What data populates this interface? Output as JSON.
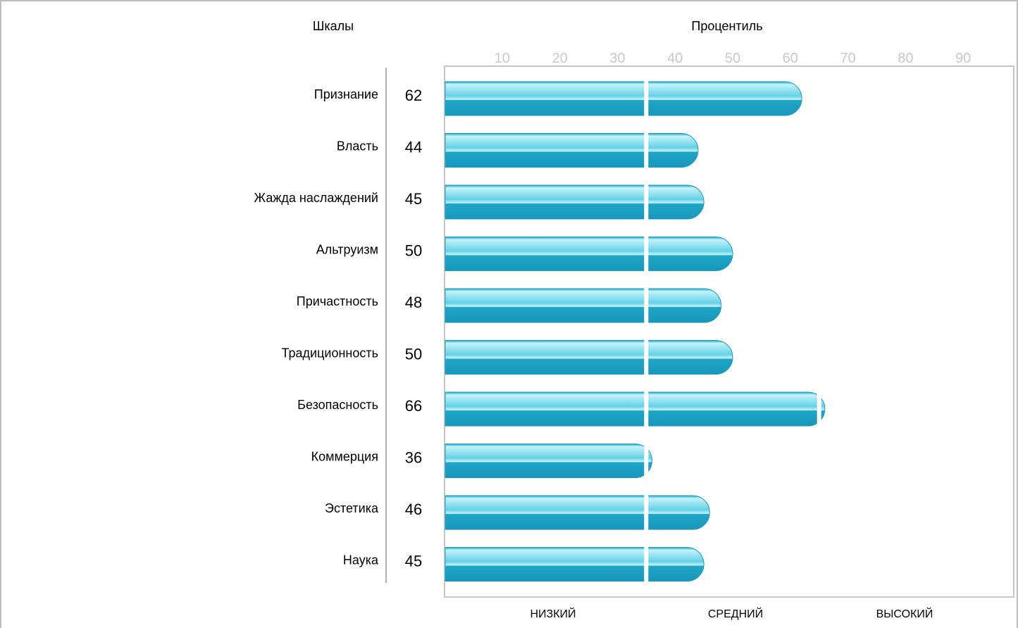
{
  "chart_data": {
    "type": "bar",
    "orientation": "horizontal",
    "title": "Процентиль",
    "categories_header": "Шкалы",
    "categories": [
      "Признание",
      "Власть",
      "Жажда наслаждений",
      "Альтруизм",
      "Причастность",
      "Традиционность",
      "Безопасность",
      "Коммерция",
      "Эстетика",
      "Наука"
    ],
    "values": [
      62,
      44,
      45,
      50,
      48,
      50,
      66,
      36,
      46,
      45
    ],
    "xticks": [
      10,
      20,
      30,
      40,
      50,
      60,
      70,
      80,
      90
    ],
    "xlim": [
      0,
      98
    ],
    "zones": [
      {
        "label": "НИЗКИЙ",
        "from": 0,
        "to": 35
      },
      {
        "label": "СРЕДНИЙ",
        "from": 35,
        "to": 65
      },
      {
        "label": "ВЫСОКИЙ",
        "from": 65,
        "to": 98
      }
    ],
    "dividers": [
      35,
      65
    ],
    "bar_color": "#1aa3c6",
    "bar_highlight": "#c9f4fb",
    "tick_color": "#c8c8c8",
    "grid": false
  }
}
